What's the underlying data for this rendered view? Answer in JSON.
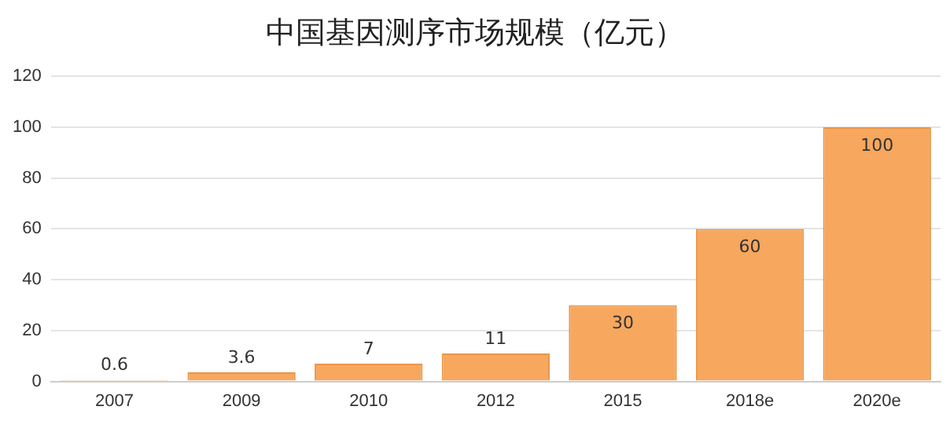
{
  "chart_data": {
    "type": "bar",
    "title": "中国基因测序市场规模（亿元）",
    "categories": [
      "2007",
      "2009",
      "2010",
      "2012",
      "2015",
      "2018e",
      "2020e"
    ],
    "values": [
      0.6,
      3.6,
      7,
      11,
      30,
      60,
      100
    ],
    "color": "#f7a75e",
    "ylim": [
      0,
      120
    ],
    "yticks": [
      0,
      20,
      40,
      60,
      80,
      100,
      120
    ],
    "grid": "y",
    "data_labels": true,
    "legend": false
  }
}
